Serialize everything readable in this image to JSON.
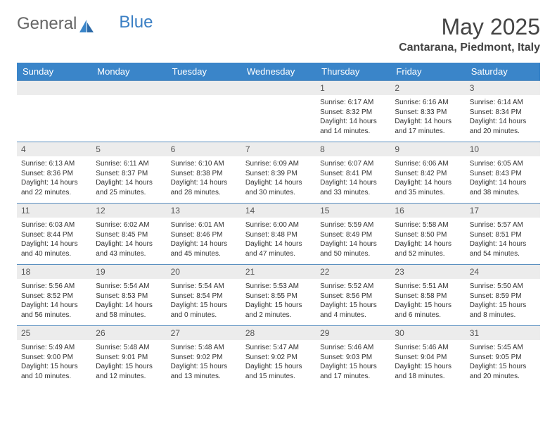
{
  "logo": {
    "text1": "General",
    "text2": "Blue",
    "icon_color": "#3a85c9"
  },
  "header": {
    "month_title": "May 2025",
    "location": "Cantarana, Piedmont, Italy"
  },
  "colors": {
    "header_bg": "#3a85c9",
    "header_text": "#ffffff",
    "daynum_bg": "#ececec",
    "border": "#5a8fc0",
    "body_text": "#333333"
  },
  "days_of_week": [
    "Sunday",
    "Monday",
    "Tuesday",
    "Wednesday",
    "Thursday",
    "Friday",
    "Saturday"
  ],
  "first_day_index": 4,
  "days": [
    {
      "n": "1",
      "sunrise": "6:17 AM",
      "sunset": "8:32 PM",
      "dl": "14 hours and 14 minutes."
    },
    {
      "n": "2",
      "sunrise": "6:16 AM",
      "sunset": "8:33 PM",
      "dl": "14 hours and 17 minutes."
    },
    {
      "n": "3",
      "sunrise": "6:14 AM",
      "sunset": "8:34 PM",
      "dl": "14 hours and 20 minutes."
    },
    {
      "n": "4",
      "sunrise": "6:13 AM",
      "sunset": "8:36 PM",
      "dl": "14 hours and 22 minutes."
    },
    {
      "n": "5",
      "sunrise": "6:11 AM",
      "sunset": "8:37 PM",
      "dl": "14 hours and 25 minutes."
    },
    {
      "n": "6",
      "sunrise": "6:10 AM",
      "sunset": "8:38 PM",
      "dl": "14 hours and 28 minutes."
    },
    {
      "n": "7",
      "sunrise": "6:09 AM",
      "sunset": "8:39 PM",
      "dl": "14 hours and 30 minutes."
    },
    {
      "n": "8",
      "sunrise": "6:07 AM",
      "sunset": "8:41 PM",
      "dl": "14 hours and 33 minutes."
    },
    {
      "n": "9",
      "sunrise": "6:06 AM",
      "sunset": "8:42 PM",
      "dl": "14 hours and 35 minutes."
    },
    {
      "n": "10",
      "sunrise": "6:05 AM",
      "sunset": "8:43 PM",
      "dl": "14 hours and 38 minutes."
    },
    {
      "n": "11",
      "sunrise": "6:03 AM",
      "sunset": "8:44 PM",
      "dl": "14 hours and 40 minutes."
    },
    {
      "n": "12",
      "sunrise": "6:02 AM",
      "sunset": "8:45 PM",
      "dl": "14 hours and 43 minutes."
    },
    {
      "n": "13",
      "sunrise": "6:01 AM",
      "sunset": "8:46 PM",
      "dl": "14 hours and 45 minutes."
    },
    {
      "n": "14",
      "sunrise": "6:00 AM",
      "sunset": "8:48 PM",
      "dl": "14 hours and 47 minutes."
    },
    {
      "n": "15",
      "sunrise": "5:59 AM",
      "sunset": "8:49 PM",
      "dl": "14 hours and 50 minutes."
    },
    {
      "n": "16",
      "sunrise": "5:58 AM",
      "sunset": "8:50 PM",
      "dl": "14 hours and 52 minutes."
    },
    {
      "n": "17",
      "sunrise": "5:57 AM",
      "sunset": "8:51 PM",
      "dl": "14 hours and 54 minutes."
    },
    {
      "n": "18",
      "sunrise": "5:56 AM",
      "sunset": "8:52 PM",
      "dl": "14 hours and 56 minutes."
    },
    {
      "n": "19",
      "sunrise": "5:54 AM",
      "sunset": "8:53 PM",
      "dl": "14 hours and 58 minutes."
    },
    {
      "n": "20",
      "sunrise": "5:54 AM",
      "sunset": "8:54 PM",
      "dl": "15 hours and 0 minutes."
    },
    {
      "n": "21",
      "sunrise": "5:53 AM",
      "sunset": "8:55 PM",
      "dl": "15 hours and 2 minutes."
    },
    {
      "n": "22",
      "sunrise": "5:52 AM",
      "sunset": "8:56 PM",
      "dl": "15 hours and 4 minutes."
    },
    {
      "n": "23",
      "sunrise": "5:51 AM",
      "sunset": "8:58 PM",
      "dl": "15 hours and 6 minutes."
    },
    {
      "n": "24",
      "sunrise": "5:50 AM",
      "sunset": "8:59 PM",
      "dl": "15 hours and 8 minutes."
    },
    {
      "n": "25",
      "sunrise": "5:49 AM",
      "sunset": "9:00 PM",
      "dl": "15 hours and 10 minutes."
    },
    {
      "n": "26",
      "sunrise": "5:48 AM",
      "sunset": "9:01 PM",
      "dl": "15 hours and 12 minutes."
    },
    {
      "n": "27",
      "sunrise": "5:48 AM",
      "sunset": "9:02 PM",
      "dl": "15 hours and 13 minutes."
    },
    {
      "n": "28",
      "sunrise": "5:47 AM",
      "sunset": "9:02 PM",
      "dl": "15 hours and 15 minutes."
    },
    {
      "n": "29",
      "sunrise": "5:46 AM",
      "sunset": "9:03 PM",
      "dl": "15 hours and 17 minutes."
    },
    {
      "n": "30",
      "sunrise": "5:46 AM",
      "sunset": "9:04 PM",
      "dl": "15 hours and 18 minutes."
    },
    {
      "n": "31",
      "sunrise": "5:45 AM",
      "sunset": "9:05 PM",
      "dl": "15 hours and 20 minutes."
    }
  ],
  "labels": {
    "sunrise": "Sunrise: ",
    "sunset": "Sunset: ",
    "daylight": "Daylight: "
  }
}
